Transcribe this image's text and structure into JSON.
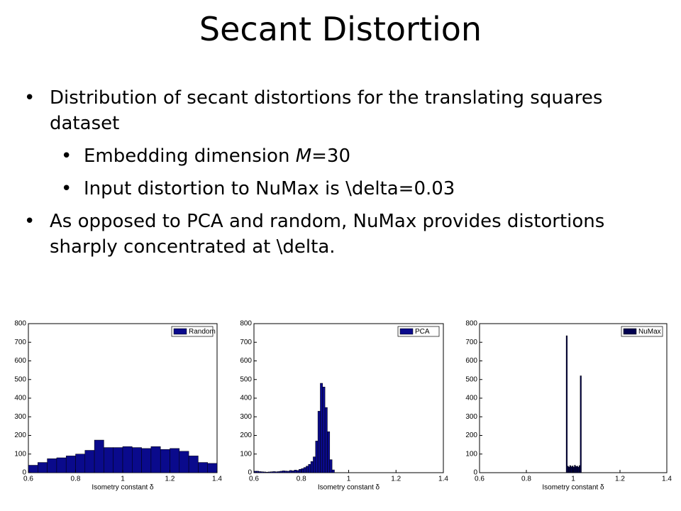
{
  "title": "Secant Distortion",
  "bullets": [
    {
      "text": "Distribution of secant distortions for the translating squares dataset",
      "sub": [
        {
          "runs": [
            "Embedding dimension ",
            "M",
            "=30"
          ]
        },
        {
          "runs": [
            "Input distortion to NuMax is \\delta=0.03"
          ]
        }
      ]
    },
    {
      "text": "As opposed to PCA and random, NuMax provides distortions sharply concentrated at \\delta.",
      "sub": []
    }
  ],
  "chart_data": [
    {
      "type": "histogram",
      "xlabel": "Isometry constant δ",
      "legend": "upper right",
      "bins": [
        0.6,
        0.64,
        0.68,
        0.72,
        0.76,
        0.8,
        0.84,
        0.88,
        0.92,
        0.96,
        1.0,
        1.04,
        1.08,
        1.12,
        1.16,
        1.2,
        1.24,
        1.28,
        1.32,
        1.36,
        1.4
      ],
      "series": [
        {
          "name": "Random",
          "color": "#0a0a8c",
          "values": [
            40,
            55,
            75,
            80,
            90,
            100,
            120,
            175,
            135,
            135,
            140,
            135,
            130,
            140,
            125,
            130,
            115,
            90,
            55,
            50
          ]
        }
      ],
      "xlim": [
        0.6,
        1.4
      ],
      "ylim": [
        0,
        800
      ],
      "xticks": [
        0.6,
        0.8,
        1,
        1.2,
        1.4
      ],
      "yticks": [
        0,
        100,
        200,
        300,
        400,
        500,
        600,
        700,
        800
      ]
    },
    {
      "type": "histogram",
      "xlabel": "Isometry constant δ",
      "legend": "upper right",
      "bins": [
        0.6,
        0.61,
        0.62,
        0.63,
        0.64,
        0.65,
        0.66,
        0.67,
        0.68,
        0.69,
        0.7,
        0.71,
        0.72,
        0.73,
        0.74,
        0.75,
        0.76,
        0.77,
        0.78,
        0.79,
        0.8,
        0.81,
        0.82,
        0.83,
        0.84,
        0.85,
        0.86,
        0.87,
        0.88,
        0.89,
        0.9,
        0.91,
        0.92,
        0.93,
        0.94
      ],
      "series": [
        {
          "name": "PCA",
          "color": "#0a0a8c",
          "values": [
            8,
            8,
            6,
            5,
            4,
            3,
            4,
            5,
            6,
            5,
            6,
            8,
            10,
            9,
            8,
            12,
            10,
            14,
            12,
            18,
            22,
            28,
            35,
            45,
            60,
            85,
            170,
            330,
            480,
            460,
            350,
            220,
            70,
            15
          ]
        }
      ],
      "xlim": [
        0.6,
        1.4
      ],
      "ylim": [
        0,
        800
      ],
      "xticks": [
        0.6,
        0.8,
        1,
        1.2,
        1.4
      ],
      "yticks": [
        0,
        100,
        200,
        300,
        400,
        500,
        600,
        700,
        800
      ]
    },
    {
      "type": "histogram",
      "xlabel": "Isometry constant δ",
      "legend": "upper right",
      "bins": [
        0.97,
        0.975,
        0.98,
        0.985,
        0.99,
        0.995,
        1.0,
        1.005,
        1.01,
        1.015,
        1.02,
        1.025,
        1.03,
        1.035
      ],
      "series": [
        {
          "name": "NuMax",
          "color": "#000050",
          "values": [
            735,
            35,
            30,
            38,
            32,
            36,
            30,
            40,
            33,
            35,
            30,
            38,
            520
          ]
        }
      ],
      "xlim": [
        0.6,
        1.4
      ],
      "ylim": [
        0,
        800
      ],
      "xticks": [
        0.6,
        0.8,
        1,
        1.2,
        1.4
      ],
      "yticks": [
        0,
        100,
        200,
        300,
        400,
        500,
        600,
        700,
        800
      ]
    }
  ]
}
